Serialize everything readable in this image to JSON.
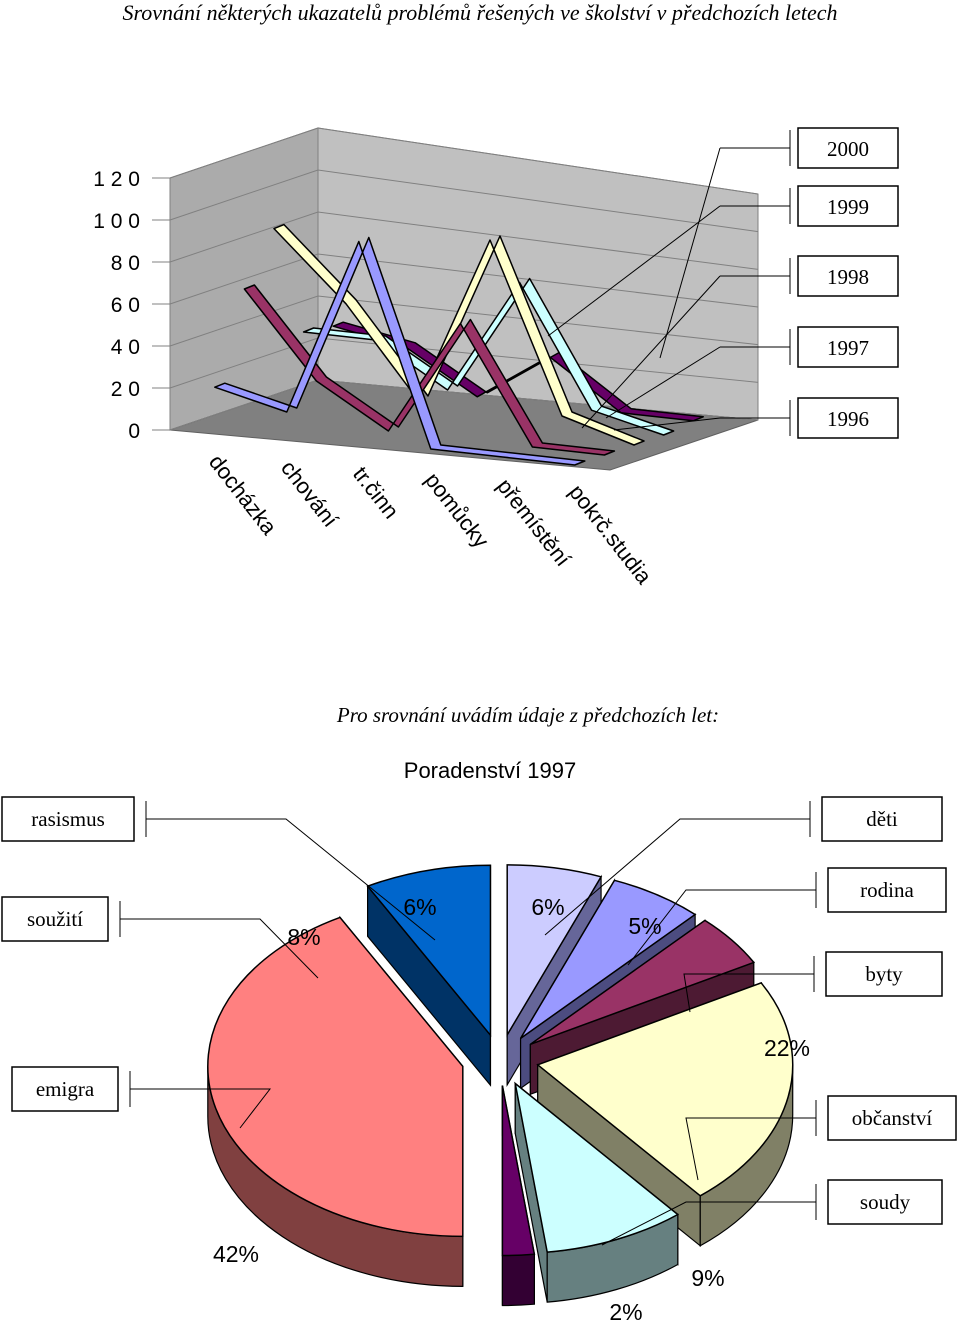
{
  "page": {
    "title": "Srovnání některých ukazatelů  problémů řešených ve školství v  předchozích letech",
    "subtitle": "Pro srovnání  uvádím údaje z  předchozích let:"
  },
  "chart_data": [
    {
      "type": "line",
      "style": "3d",
      "categories": [
        "docházka",
        "chování",
        "tr.činn",
        "pomůcky",
        "přemístění",
        "pokrč.studia"
      ],
      "y_tick_labels": [
        "0",
        "2 0",
        "4 0",
        "6 0",
        "8 0",
        "1 0 0",
        "1 2 0"
      ],
      "ylim": [
        0,
        120
      ],
      "grid": true,
      "legend_position": "right",
      "series": [
        {
          "name": "1996",
          "color": "#9999FF",
          "values": [
            18,
            10,
            95,
            0,
            0,
            0
          ]
        },
        {
          "name": "1997",
          "color": "#993366",
          "values": [
            60,
            20,
            0,
            55,
            0,
            0
          ]
        },
        {
          "name": "1998",
          "color": "#FFFFCC",
          "values": [
            84,
            52,
            10,
            90,
            10,
            0
          ]
        },
        {
          "name": "1999",
          "color": "#CCFFFF",
          "values": [
            30,
            30,
            10,
            65,
            8,
            0
          ]
        },
        {
          "name": "2000",
          "color": "#660066",
          "values": [
            28,
            22,
            2,
            25,
            2,
            2
          ]
        }
      ],
      "extra_series_colors": [
        "#CCCCCC",
        "#7F7F7F"
      ]
    },
    {
      "type": "pie",
      "style": "3d-exploded",
      "title": "Poradenství 1997",
      "labels": [
        "rasismus",
        "děti",
        "rodina",
        "byty",
        "občanství",
        "soudy",
        "emigra",
        "soužití"
      ],
      "slices": [
        {
          "label": "rasismus",
          "value": 6,
          "pct": "6%",
          "color": "#CCCCFF",
          "side": "#666699"
        },
        {
          "label": "děti",
          "value": 6,
          "pct": "6%",
          "color": "#9999FF",
          "side": "#4C4C80"
        },
        {
          "label": "rodina",
          "value": 5,
          "pct": "5%",
          "color": "#993366",
          "side": "#4D1A33"
        },
        {
          "label": "byty",
          "value": 22,
          "pct": "22%",
          "color": "#FFFFCC",
          "side": "#808066"
        },
        {
          "label": "občanství",
          "value": 9,
          "pct": "9%",
          "color": "#CCFFFF",
          "side": "#668080"
        },
        {
          "label": "soudy",
          "value": 2,
          "pct": "2%",
          "color": "#660066",
          "side": "#330033"
        },
        {
          "label": "emigra",
          "value": 42,
          "pct": "42%",
          "color": "#FF8080",
          "side": "#804040"
        },
        {
          "label": "soužití",
          "value": 8,
          "pct": "8%",
          "color": "#0066CC",
          "side": "#003366"
        }
      ]
    }
  ]
}
